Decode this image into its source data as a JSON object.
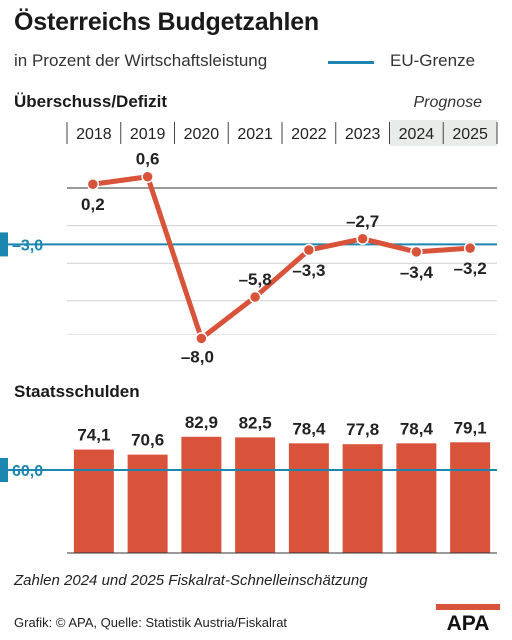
{
  "title": "Österreichs Budgetzahlen",
  "subtitle": "in Prozent der Wirtschaftsleistung",
  "legend": {
    "label": "EU-Grenze",
    "color": "#1b86b0"
  },
  "prognose_label": "Prognose",
  "footnote": "Zahlen 2024 und 2025 Fiskalrat-Schnelleinschätzung",
  "source": "Grafik: © APA, Quelle: Statistik Austria/Fiskalrat",
  "logo_text": "APA",
  "colors": {
    "data": "#d9533b",
    "limit": "#1b86b0",
    "forecast_bg": "#e8ece8"
  },
  "chart_data": [
    {
      "type": "line",
      "title": "Überschuss/Defizit",
      "categories": [
        "2018",
        "2019",
        "2020",
        "2021",
        "2022",
        "2023",
        "2024",
        "2025"
      ],
      "values": [
        0.2,
        0.6,
        -8.0,
        -5.8,
        -3.3,
        -2.7,
        -3.4,
        -3.2
      ],
      "value_labels": [
        "0,2",
        "0,6",
        "–8,0",
        "–5,8",
        "–3,3",
        "–2,7",
        "–3,4",
        "–3,2"
      ],
      "reference_line": {
        "value": -3.0,
        "label": "–3,0"
      },
      "forecast_categories": [
        "2024",
        "2025"
      ],
      "ylim": [
        -8.6,
        1.2
      ]
    },
    {
      "type": "bar",
      "title": "Staatsschulden",
      "categories": [
        "2018",
        "2019",
        "2020",
        "2021",
        "2022",
        "2023",
        "2024",
        "2025"
      ],
      "values": [
        74.1,
        70.6,
        82.9,
        82.5,
        78.4,
        77.8,
        78.4,
        79.1
      ],
      "value_labels": [
        "74,1",
        "70,6",
        "82,9",
        "82,5",
        "78,4",
        "77,8",
        "78,4",
        "79,1"
      ],
      "reference_line": {
        "value": 60.0,
        "label": "60,0"
      },
      "ylim": [
        40,
        85
      ]
    }
  ]
}
